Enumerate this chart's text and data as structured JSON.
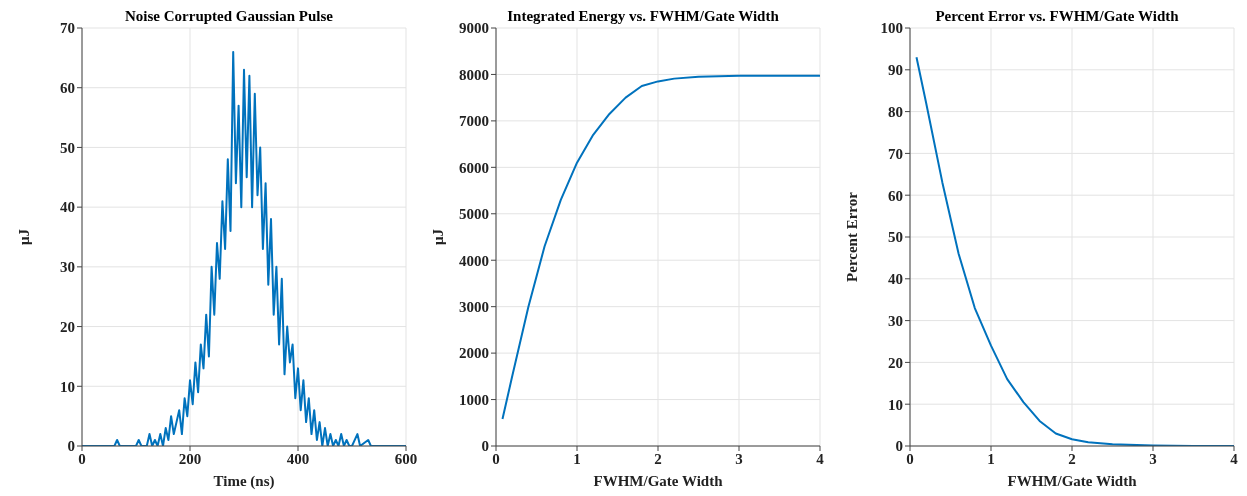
{
  "chart_data": [
    {
      "type": "line",
      "title": "Noise Corrupted Gaussian Pulse",
      "xlabel": "Time (ns)",
      "ylabel": "μJ",
      "xlim": [
        0,
        600
      ],
      "xticks": [
        0,
        200,
        400,
        600
      ],
      "ylim": [
        0,
        70
      ],
      "yticks": [
        0,
        10,
        20,
        30,
        40,
        50,
        60,
        70
      ],
      "grid": true,
      "marker": "none",
      "line_style": "solid",
      "series": [
        {
          "color": "#0072bd",
          "x": [
            0,
            60,
            65,
            70,
            100,
            105,
            110,
            120,
            125,
            130,
            135,
            140,
            145,
            150,
            155,
            160,
            165,
            170,
            175,
            180,
            185,
            190,
            195,
            200,
            205,
            210,
            215,
            220,
            225,
            230,
            235,
            240,
            245,
            250,
            255,
            260,
            265,
            270,
            275,
            280,
            285,
            290,
            295,
            300,
            305,
            310,
            315,
            320,
            325,
            330,
            335,
            340,
            345,
            350,
            355,
            360,
            365,
            370,
            375,
            380,
            385,
            390,
            395,
            400,
            405,
            410,
            415,
            420,
            425,
            430,
            435,
            440,
            445,
            450,
            455,
            460,
            465,
            470,
            475,
            480,
            485,
            490,
            495,
            500,
            510,
            515,
            530,
            535,
            600
          ],
          "values": [
            0,
            0,
            1,
            0,
            0,
            1,
            0,
            0,
            2,
            0,
            1,
            0,
            2,
            0,
            3,
            1,
            5,
            2,
            4,
            6,
            2,
            8,
            5,
            11,
            7,
            14,
            9,
            17,
            13,
            22,
            15,
            30,
            22,
            34,
            28,
            41,
            33,
            48,
            36,
            66,
            44,
            57,
            40,
            63,
            45,
            62,
            40,
            59,
            42,
            50,
            33,
            44,
            27,
            38,
            22,
            30,
            17,
            28,
            12,
            20,
            14,
            17,
            8,
            13,
            6,
            11,
            4,
            8,
            2,
            6,
            1,
            4,
            0,
            3,
            0,
            2,
            0,
            1,
            0,
            2,
            0,
            1,
            0,
            0,
            2,
            0,
            1,
            0,
            0
          ]
        }
      ]
    },
    {
      "type": "line",
      "title": "Integrated Energy vs. FWHM/Gate Width",
      "xlabel": "FWHM/Gate Width",
      "ylabel": "μJ",
      "xlim": [
        0,
        4
      ],
      "xticks": [
        0,
        1,
        2,
        3,
        4
      ],
      "ylim": [
        0,
        9000
      ],
      "yticks": [
        0,
        1000,
        2000,
        3000,
        4000,
        5000,
        6000,
        7000,
        8000,
        9000
      ],
      "grid": true,
      "marker": "none",
      "line_style": "solid",
      "series": [
        {
          "color": "#0072bd",
          "x": [
            0.08,
            0.2,
            0.4,
            0.6,
            0.8,
            1.0,
            1.2,
            1.4,
            1.6,
            1.8,
            2.0,
            2.2,
            2.5,
            3,
            3.5,
            4
          ],
          "values": [
            580,
            1500,
            3000,
            4300,
            5300,
            6100,
            6700,
            7150,
            7500,
            7750,
            7850,
            7910,
            7950,
            7970,
            7970,
            7970
          ]
        }
      ]
    },
    {
      "type": "line",
      "title": "Percent Error vs. FWHM/Gate Width",
      "xlabel": "FWHM/Gate Width",
      "ylabel": "Percent Error",
      "xlim": [
        0,
        4
      ],
      "xticks": [
        0,
        1,
        2,
        3,
        4
      ],
      "ylim": [
        0,
        100
      ],
      "yticks": [
        0,
        10,
        20,
        30,
        40,
        50,
        60,
        70,
        80,
        90,
        100
      ],
      "grid": true,
      "marker": "none",
      "line_style": "solid",
      "series": [
        {
          "color": "#0072bd",
          "x": [
            0.08,
            0.2,
            0.4,
            0.6,
            0.8,
            1.0,
            1.2,
            1.4,
            1.6,
            1.8,
            2.0,
            2.2,
            2.5,
            3,
            3.5,
            4
          ],
          "values": [
            93,
            82,
            63,
            46,
            33,
            24,
            16,
            10.5,
            6,
            3,
            1.6,
            0.9,
            0.4,
            0.1,
            0,
            0
          ]
        }
      ]
    }
  ]
}
